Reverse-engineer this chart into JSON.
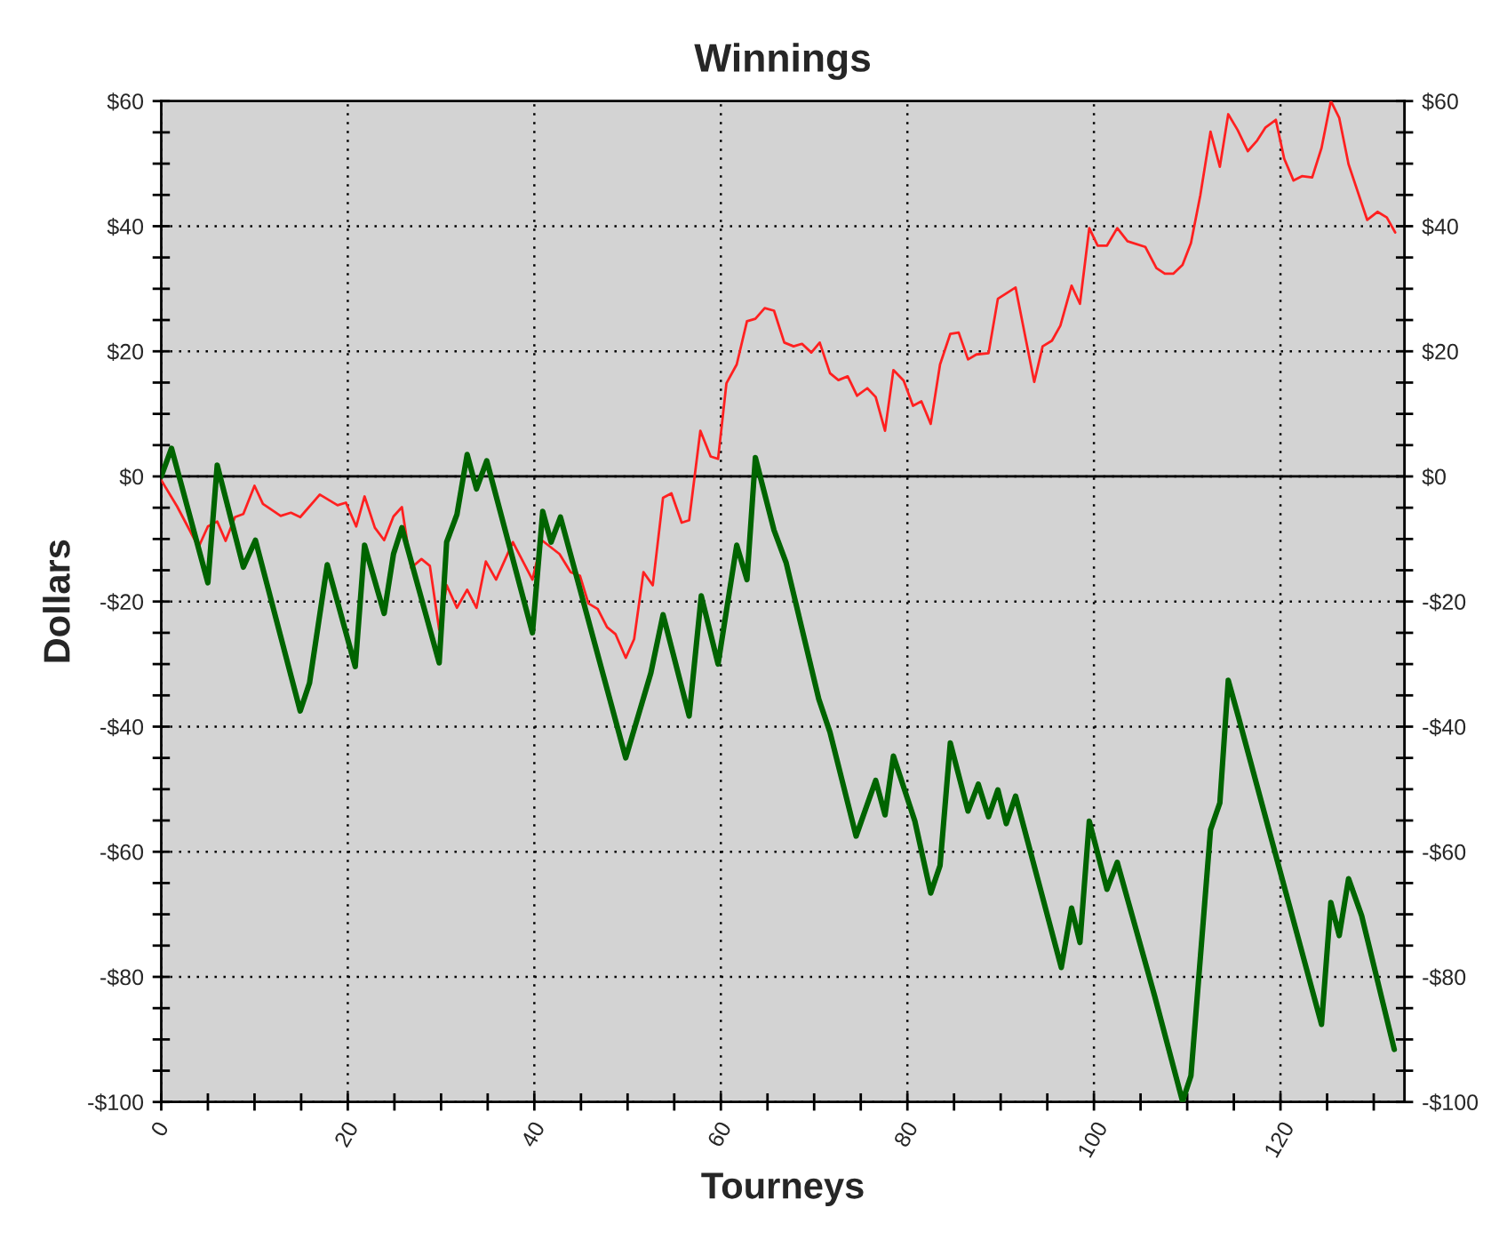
{
  "chart_data": {
    "type": "line",
    "title": "Winnings",
    "xlabel": "Tourneys",
    "ylabel": "Dollars",
    "xlim": [
      0,
      133.3
    ],
    "ylim": [
      -100,
      60
    ],
    "y2lim": [
      -100,
      60
    ],
    "xticks": [
      0,
      {
        "value": 5,
        "label": null
      },
      {
        "value": 10,
        "label": null
      },
      {
        "value": 15,
        "label": null
      },
      20,
      {
        "value": 25,
        "label": null
      },
      {
        "value": 30,
        "label": null
      },
      {
        "value": 35,
        "label": null
      },
      40,
      {
        "value": 45,
        "label": null
      },
      {
        "value": 50,
        "label": null
      },
      {
        "value": 55,
        "label": null
      },
      60,
      {
        "value": 65,
        "label": null
      },
      {
        "value": 70,
        "label": null
      },
      {
        "value": 75,
        "label": null
      },
      80,
      {
        "value": 85,
        "label": null
      },
      {
        "value": 90,
        "label": null
      },
      {
        "value": 95,
        "label": null
      },
      100,
      {
        "value": 105,
        "label": null
      },
      {
        "value": 110,
        "label": null
      },
      {
        "value": 115,
        "label": null
      },
      120,
      {
        "value": 125,
        "label": null
      },
      {
        "value": 130,
        "label": null
      }
    ],
    "yticks": [
      {
        "value": -100,
        "label": "-$100"
      },
      {
        "value": -95,
        "label": null
      },
      {
        "value": -90,
        "label": null
      },
      {
        "value": -85,
        "label": null
      },
      {
        "value": -80,
        "label": "-$80"
      },
      {
        "value": -75,
        "label": null
      },
      {
        "value": -70,
        "label": null
      },
      {
        "value": -65,
        "label": null
      },
      {
        "value": -60,
        "label": "-$60"
      },
      {
        "value": -55,
        "label": null
      },
      {
        "value": -50,
        "label": null
      },
      {
        "value": -45,
        "label": null
      },
      {
        "value": -40,
        "label": "-$40"
      },
      {
        "value": -35,
        "label": null
      },
      {
        "value": -30,
        "label": null
      },
      {
        "value": -25,
        "label": null
      },
      {
        "value": -20,
        "label": "-$20"
      },
      {
        "value": -15,
        "label": null
      },
      {
        "value": -10,
        "label": null
      },
      {
        "value": -5,
        "label": null
      },
      {
        "value": 0,
        "label": "$0"
      },
      {
        "value": 5,
        "label": null
      },
      {
        "value": 10,
        "label": null
      },
      {
        "value": 15,
        "label": null
      },
      {
        "value": 20,
        "label": "$20"
      },
      {
        "value": 25,
        "label": null
      },
      {
        "value": 30,
        "label": null
      },
      {
        "value": 35,
        "label": null
      },
      {
        "value": 40,
        "label": "$40"
      },
      {
        "value": 45,
        "label": null
      },
      {
        "value": 50,
        "label": null
      },
      {
        "value": 55,
        "label": null
      },
      {
        "value": 60,
        "label": "$60"
      }
    ],
    "y2ticks": [
      {
        "value": -100,
        "label": "-$100"
      },
      {
        "value": -95,
        "label": null
      },
      {
        "value": -90,
        "label": null
      },
      {
        "value": -85,
        "label": null
      },
      {
        "value": -80,
        "label": "-$80"
      },
      {
        "value": -75,
        "label": null
      },
      {
        "value": -70,
        "label": null
      },
      {
        "value": -65,
        "label": null
      },
      {
        "value": -60,
        "label": "-$60"
      },
      {
        "value": -55,
        "label": null
      },
      {
        "value": -50,
        "label": null
      },
      {
        "value": -45,
        "label": null
      },
      {
        "value": -40,
        "label": "-$40"
      },
      {
        "value": -35,
        "label": null
      },
      {
        "value": -30,
        "label": null
      },
      {
        "value": -25,
        "label": null
      },
      {
        "value": -20,
        "label": "-$20"
      },
      {
        "value": -15,
        "label": null
      },
      {
        "value": -10,
        "label": null
      },
      {
        "value": -5,
        "label": null
      },
      {
        "value": 0,
        "label": "$0"
      },
      {
        "value": 5,
        "label": null
      },
      {
        "value": 10,
        "label": null
      },
      {
        "value": 15,
        "label": null
      },
      {
        "value": 20,
        "label": "$20"
      },
      {
        "value": 25,
        "label": null
      },
      {
        "value": 30,
        "label": null
      },
      {
        "value": 35,
        "label": null
      },
      {
        "value": 40,
        "label": "$40"
      },
      {
        "value": 45,
        "label": null
      },
      {
        "value": 50,
        "label": null
      },
      {
        "value": 55,
        "label": null
      },
      {
        "value": 60,
        "label": "$60"
      }
    ],
    "grid": true,
    "legend": false,
    "marker": "none",
    "line_style": "solid",
    "ref_lines": [
      {
        "axis": "y",
        "value": 0,
        "color": "#000000",
        "line_style": "solid"
      }
    ],
    "series": [
      {
        "color": "#ff2020",
        "x": [
          0,
          1.7,
          4,
          5,
          6,
          6.9,
          7.9,
          8.8,
          10,
          10.9,
          12.8,
          13.9,
          14.9,
          17,
          18.9,
          19.8,
          20.9,
          21.8,
          22.9,
          23.9,
          24.9,
          25.8,
          26.8,
          27.9,
          28.8,
          29.8,
          30.6,
          31.7,
          32.8,
          33.8,
          34.8,
          35.9,
          37.7,
          39.8,
          40.8,
          42.7,
          43.9,
          44.9,
          45.8,
          46.8,
          47.8,
          48.7,
          49.8,
          50.7,
          51.7,
          52.7,
          53.8,
          54.7,
          55.8,
          56.6,
          57.8,
          58.9,
          59.7,
          60.6,
          61.7,
          62.8,
          63.7,
          64.7,
          65.7,
          66.8,
          67.8,
          68.7,
          69.7,
          70.6,
          71.7,
          72.6,
          73.6,
          74.6,
          75.7,
          76.6,
          77.6,
          78.5,
          79.6,
          80.6,
          81.5,
          82.5,
          83.5,
          84.6,
          85.5,
          86.5,
          87.4,
          88.7,
          89.7,
          91.6,
          93.6,
          94.5,
          95.5,
          96.4,
          97.6,
          98.5,
          99.5,
          100.4,
          101.4,
          102.5,
          103.6,
          105.5,
          106.7,
          107.6,
          108.5,
          109.5,
          110.4,
          111.4,
          112.5,
          113.5,
          114.4,
          115.4,
          116.5,
          117.5,
          118.4,
          119.5,
          120.4,
          121.4,
          122.3,
          123.4,
          124.4,
          125.4,
          126.3,
          127.3,
          129.3,
          130.4,
          131.4,
          132.3
        ],
        "values": [
          -0.6,
          -4.8,
          -11.3,
          -8,
          -7.2,
          -10.3,
          -6.5,
          -6,
          -1.5,
          -4.4,
          -6.3,
          -5.8,
          -6.5,
          -2.9,
          -4.6,
          -4.2,
          -8,
          -3.2,
          -8.2,
          -10.2,
          -6.4,
          -4.9,
          -14.6,
          -13.2,
          -14.3,
          -24.5,
          -17.4,
          -21,
          -18.1,
          -21,
          -13.6,
          -16.5,
          -10.5,
          -16.5,
          -10.2,
          -12.4,
          -15.3,
          -15.9,
          -20.3,
          -21.2,
          -24.1,
          -25.2,
          -29,
          -26,
          -15.3,
          -17.4,
          -3.4,
          -2.7,
          -7.4,
          -7,
          7.3,
          3.2,
          2.8,
          14.9,
          17.9,
          24.8,
          25.2,
          26.9,
          26.5,
          21.4,
          20.8,
          21.2,
          19.8,
          21.4,
          16.5,
          15.4,
          16,
          12.9,
          14.1,
          12.7,
          7.3,
          17,
          15.3,
          11.3,
          12,
          8.4,
          17.9,
          22.8,
          23,
          18.7,
          19.5,
          19.7,
          28.4,
          30.2,
          15.1,
          20.8,
          21.7,
          24.1,
          30.5,
          27.6,
          39.7,
          36.9,
          36.9,
          39.7,
          37.6,
          36.7,
          33.3,
          32.4,
          32.4,
          33.8,
          37.3,
          44.9,
          55.1,
          49.5,
          57.9,
          55.4,
          52,
          53.7,
          55.8,
          57,
          50.8,
          47.3,
          48,
          47.8,
          52.5,
          60,
          57.3,
          49.9,
          41,
          42.3,
          41.4,
          39
        ]
      },
      {
        "color": "#006400",
        "x": [
          0,
          1.1,
          5,
          6,
          8.8,
          10.1,
          14.9,
          15.9,
          17.8,
          20.8,
          21.8,
          23.9,
          24.9,
          25.8,
          29.8,
          30.6,
          31.7,
          32.8,
          33.8,
          34.9,
          39.8,
          40.9,
          41.8,
          42.8,
          49.8,
          52.5,
          53.8,
          56.6,
          57.9,
          59.7,
          61.7,
          62.8,
          63.7,
          65.7,
          67,
          70.5,
          71.7,
          74.5,
          76.6,
          77.6,
          78.5,
          80.8,
          82.5,
          83.5,
          84.6,
          86.5,
          87.6,
          88.7,
          89.7,
          90.6,
          91.6,
          96.5,
          97.6,
          98.5,
          99.5,
          101.4,
          102.5,
          106.5,
          109.5,
          110.4,
          112.5,
          113.5,
          114.4,
          115.5,
          124.4,
          125.4,
          126.3,
          127.3,
          128.7,
          132.2
        ],
        "values": [
          0,
          4.5,
          -17,
          1.8,
          -14.5,
          -10.2,
          -37.5,
          -33,
          -14.1,
          -30.4,
          -11,
          -21.9,
          -12.4,
          -8.2,
          -29.8,
          -10.5,
          -6.1,
          3.5,
          -2,
          2.5,
          -25,
          -5.6,
          -10.5,
          -6.5,
          -45,
          -31.4,
          -22.1,
          -38.3,
          -19.1,
          -30,
          -11,
          -16.5,
          3,
          -8.6,
          -13.8,
          -35.6,
          -40.9,
          -57.5,
          -48.6,
          -54.1,
          -44.7,
          -55.1,
          -66.6,
          -62.2,
          -42.6,
          -53.5,
          -49.2,
          -54.4,
          -50.1,
          -55.5,
          -51.1,
          -78.5,
          -69,
          -74.5,
          -55.1,
          -66,
          -61.7,
          -83,
          -99.9,
          -95.8,
          -56.5,
          -52.2,
          -32.6,
          -38.5,
          -87.6,
          -68.1,
          -73.4,
          -64.3,
          -70.2,
          -91.6
        ]
      }
    ]
  }
}
